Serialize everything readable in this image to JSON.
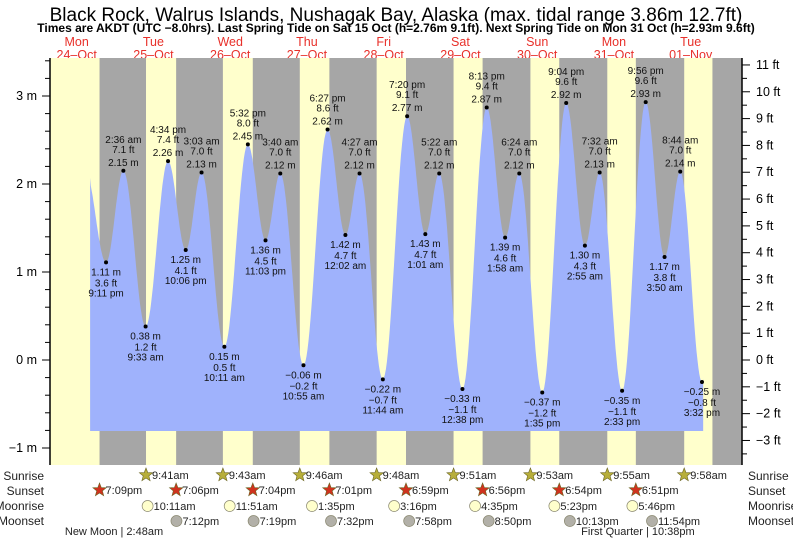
{
  "chart_data": {
    "type": "area",
    "title": "Black Rock, Walrus Islands, Nushagak Bay, Alaska (max. tidal range 3.86m 12.7ft)",
    "subtitle": "Times are AKDT (UTC −8.0hrs). Last Spring Tide on Sat 15 Oct (h=2.76m 9.1ft). Next Spring Tide on Mon 31 Oct (h=2.93m 9.6ft)",
    "days": [
      {
        "dow": "Mon",
        "date": "24–Oct"
      },
      {
        "dow": "Tue",
        "date": "25–Oct"
      },
      {
        "dow": "Wed",
        "date": "26–Oct"
      },
      {
        "dow": "Thu",
        "date": "27–Oct"
      },
      {
        "dow": "Fri",
        "date": "28–Oct"
      },
      {
        "dow": "Sat",
        "date": "29–Oct"
      },
      {
        "dow": "Sun",
        "date": "30–Oct"
      },
      {
        "dow": "Mon",
        "date": "31–Oct"
      },
      {
        "dow": "Tue",
        "date": "01–Nov"
      }
    ],
    "y_left": {
      "unit": "m",
      "range": [
        -1.15,
        3.4
      ],
      "ticks": [
        "3 m",
        "2 m",
        "1 m",
        "0 m",
        "−1 m"
      ],
      "tick_values": [
        3,
        2,
        1,
        0,
        -1
      ]
    },
    "y_right": {
      "unit": "ft",
      "ticks": [
        "11 ft",
        "10 ft",
        "9 ft",
        "8 ft",
        "7 ft",
        "6 ft",
        "5 ft",
        "4 ft",
        "3 ft",
        "2 ft",
        "1 ft",
        "0 ft",
        "−1 ft",
        "−2 ft",
        "−3 ft"
      ],
      "tick_values": [
        11,
        10,
        9,
        8,
        7,
        6,
        5,
        4,
        3,
        2,
        1,
        0,
        -1,
        -2,
        -3
      ]
    },
    "x_unit": "hours since Mon 24-Oct 00:00",
    "series_start": {
      "h": 16.2,
      "m": 2.07
    },
    "series_end": {
      "h": 207.9,
      "m": -0.22
    },
    "extremes": [
      {
        "h": 21.18,
        "m": "1.11 m",
        "ft": "3.6 ft",
        "time": "9:11 pm",
        "v": 1.11,
        "type": "low"
      },
      {
        "h": 26.6,
        "m": "2.15 m",
        "ft": "7.1 ft",
        "time": "2:36 am",
        "v": 2.15,
        "type": "high"
      },
      {
        "h": 33.55,
        "m": "0.38 m",
        "ft": "1.2 ft",
        "time": "9:33 am",
        "v": 0.38,
        "type": "low"
      },
      {
        "h": 40.57,
        "m": "2.26 m",
        "ft": "7.4 ft",
        "time": "4:34 pm",
        "v": 2.26,
        "type": "high"
      },
      {
        "h": 46.1,
        "m": "1.25 m",
        "ft": "4.1 ft",
        "time": "10:06 pm",
        "v": 1.25,
        "type": "low"
      },
      {
        "h": 51.05,
        "m": "2.13 m",
        "ft": "7.0 ft",
        "time": "3:03 am",
        "v": 2.13,
        "type": "high"
      },
      {
        "h": 58.18,
        "m": "0.15 m",
        "ft": "0.5 ft",
        "time": "10:11 am",
        "v": 0.15,
        "type": "low"
      },
      {
        "h": 65.53,
        "m": "2.45 m",
        "ft": "8.0 ft",
        "time": "5:32 pm",
        "v": 2.45,
        "type": "high"
      },
      {
        "h": 71.05,
        "m": "1.36 m",
        "ft": "4.5 ft",
        "time": "11:03 pm",
        "v": 1.36,
        "type": "low"
      },
      {
        "h": 75.67,
        "m": "2.12 m",
        "ft": "7.0 ft",
        "time": "3:40 am",
        "v": 2.12,
        "type": "high"
      },
      {
        "h": 82.92,
        "m": "−0.06 m",
        "ft": "−0.2 ft",
        "time": "10:55 am",
        "v": -0.06,
        "type": "low"
      },
      {
        "h": 90.45,
        "m": "2.62 m",
        "ft": "8.6 ft",
        "time": "6:27 pm",
        "v": 2.62,
        "type": "high"
      },
      {
        "h": 96.03,
        "m": "1.42 m",
        "ft": "4.7 ft",
        "time": "12:02 am",
        "v": 1.42,
        "type": "low"
      },
      {
        "h": 100.45,
        "m": "2.12 m",
        "ft": "7.0 ft",
        "time": "4:27 am",
        "v": 2.12,
        "type": "high"
      },
      {
        "h": 107.73,
        "m": "−0.22 m",
        "ft": "−0.7 ft",
        "time": "11:44 am",
        "v": -0.22,
        "type": "low"
      },
      {
        "h": 115.33,
        "m": "2.77 m",
        "ft": "9.1 ft",
        "time": "7:20 pm",
        "v": 2.77,
        "type": "high"
      },
      {
        "h": 121.02,
        "m": "1.43 m",
        "ft": "4.7 ft",
        "time": "1:01 am",
        "v": 1.43,
        "type": "low"
      },
      {
        "h": 125.37,
        "m": "2.12 m",
        "ft": "7.0 ft",
        "time": "5:22 am",
        "v": 2.12,
        "type": "high"
      },
      {
        "h": 132.63,
        "m": "−0.33 m",
        "ft": "−1.1 ft",
        "time": "12:38 pm",
        "v": -0.33,
        "type": "low"
      },
      {
        "h": 140.22,
        "m": "2.87 m",
        "ft": "9.4 ft",
        "time": "8:13 pm",
        "v": 2.87,
        "type": "high"
      },
      {
        "h": 145.97,
        "m": "1.39 m",
        "ft": "4.6 ft",
        "time": "1:58 am",
        "v": 1.39,
        "type": "low"
      },
      {
        "h": 150.4,
        "m": "2.12 m",
        "ft": "7.0 ft",
        "time": "6:24 am",
        "v": 2.12,
        "type": "high"
      },
      {
        "h": 157.58,
        "m": "−0.37 m",
        "ft": "−1.2 ft",
        "time": "1:35 pm",
        "v": -0.37,
        "type": "low"
      },
      {
        "h": 165.07,
        "m": "2.92 m",
        "ft": "9.6 ft",
        "time": "9:04 pm",
        "v": 2.92,
        "type": "high"
      },
      {
        "h": 170.92,
        "m": "1.30 m",
        "ft": "4.3 ft",
        "time": "2:55 am",
        "v": 1.3,
        "type": "low"
      },
      {
        "h": 175.53,
        "m": "2.13 m",
        "ft": "7.0 ft",
        "time": "7:32 am",
        "v": 2.13,
        "type": "high"
      },
      {
        "h": 182.55,
        "m": "−0.35 m",
        "ft": "−1.1 ft",
        "time": "2:33 pm",
        "v": -0.35,
        "type": "low"
      },
      {
        "h": 189.93,
        "m": "2.93 m",
        "ft": "9.6 ft",
        "time": "9:56 pm",
        "v": 2.93,
        "type": "high"
      },
      {
        "h": 195.83,
        "m": "1.17 m",
        "ft": "3.8 ft",
        "time": "3:50 am",
        "v": 1.17,
        "type": "low"
      },
      {
        "h": 200.73,
        "m": "2.14 m",
        "ft": "7.0 ft",
        "time": "8:44 am",
        "v": 2.14,
        "type": "high"
      },
      {
        "h": 207.53,
        "m": "−0.25 m",
        "ft": "−0.8 ft",
        "time": "3:32 pm",
        "v": -0.25,
        "type": "low"
      }
    ],
    "rows": {
      "labels": [
        "Sunrise",
        "Sunset",
        "Moonrise",
        "Moonset"
      ],
      "sunrise": [
        {
          "h": 33.68,
          "t": "9:41am"
        },
        {
          "h": 57.72,
          "t": "9:43am"
        },
        {
          "h": 81.77,
          "t": "9:46am"
        },
        {
          "h": 105.8,
          "t": "9:48am"
        },
        {
          "h": 129.85,
          "t": "9:51am"
        },
        {
          "h": 153.88,
          "t": "9:53am"
        },
        {
          "h": 177.92,
          "t": "9:55am"
        },
        {
          "h": 201.97,
          "t": "9:58am"
        }
      ],
      "sunset": [
        {
          "h": 19.15,
          "t": "7:09pm"
        },
        {
          "h": 43.1,
          "t": "7:06pm"
        },
        {
          "h": 67.07,
          "t": "7:04pm"
        },
        {
          "h": 91.02,
          "t": "7:01pm"
        },
        {
          "h": 114.98,
          "t": "6:59pm"
        },
        {
          "h": 138.93,
          "t": "6:56pm"
        },
        {
          "h": 162.9,
          "t": "6:54pm"
        },
        {
          "h": 186.85,
          "t": "6:51pm"
        }
      ],
      "moonrise": [
        {
          "h": 34.18,
          "t": "10:11am"
        },
        {
          "h": 59.85,
          "t": "11:51am"
        },
        {
          "h": 85.58,
          "t": "1:35pm"
        },
        {
          "h": 111.27,
          "t": "3:16pm"
        },
        {
          "h": 136.58,
          "t": "4:35pm"
        },
        {
          "h": 161.38,
          "t": "5:23pm"
        },
        {
          "h": 185.77,
          "t": "5:46pm"
        }
      ],
      "moonset": [
        {
          "h": 43.2,
          "t": "7:12pm"
        },
        {
          "h": 67.32,
          "t": "7:19pm"
        },
        {
          "h": 91.53,
          "t": "7:32pm"
        },
        {
          "h": 115.97,
          "t": "7:58pm"
        },
        {
          "h": 140.83,
          "t": "8:50pm"
        },
        {
          "h": 166.22,
          "t": "10:13pm"
        },
        {
          "h": 191.9,
          "t": "11:54pm"
        }
      ]
    },
    "moon_phases": [
      {
        "h": 26.8,
        "t": "New Moon | 2:48am"
      },
      {
        "h": 190.63,
        "t": "First Quarter | 10:38pm"
      }
    ],
    "colors": {
      "day": "#ffffcc",
      "night": "#a6a6a6",
      "water": "#9fb2fc",
      "sunrise": "#b7ae3a",
      "sunset": "#d0321e",
      "moonrise": "#ffffcc",
      "moonset": "#b2b0a8",
      "daylabel": "#e8302a"
    }
  }
}
